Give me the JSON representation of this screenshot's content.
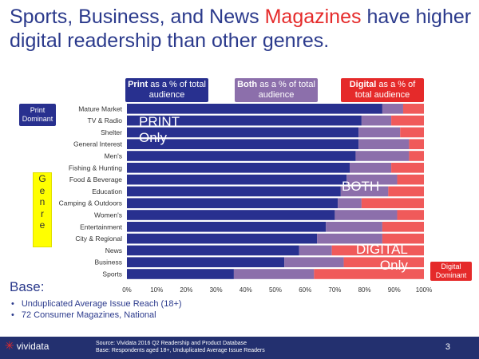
{
  "title": {
    "part1": "Sports, Business, and News ",
    "highlight": "Magazines",
    "part2": " have higher digital readership than other genres."
  },
  "legend": {
    "print": {
      "bold": "Print",
      "rest": " as a % of total audience"
    },
    "both": {
      "bold": "Both",
      "rest": " as a % of total audience"
    },
    "digital": {
      "bold": "Digital",
      "rest": " as a % of total audience"
    }
  },
  "badges": {
    "print_dominant": "Print Dominant",
    "digital_dominant": "Digital Dominant"
  },
  "genre_label": [
    "G",
    "e",
    "n",
    "r",
    "e"
  ],
  "overlays": {
    "print_only": [
      "PRINT",
      "Only"
    ],
    "both": "BOTH",
    "digital_only": [
      "DIGITAL",
      "Only"
    ]
  },
  "colors": {
    "title": "#2b3a8c",
    "highlight": "#e52a2a",
    "print": "#28308f",
    "both": "#8c6fab",
    "digital": "#f05a5a",
    "legend_print": "#28308f",
    "legend_both": "#8c6fab",
    "legend_digital": "#e52a2a",
    "footer": "#23306f"
  },
  "chart_data": {
    "type": "bar",
    "orientation": "horizontal",
    "stacked": true,
    "categories": [
      "Mature Market",
      "TV & Radio",
      "Shelter",
      "General Interest",
      "Men's",
      "Fishing & Hunting",
      "Food & Beverage",
      "Education",
      "Camping & Outdoors",
      "Women's",
      "Entertainment",
      "City & Regional",
      "News",
      "Business",
      "Sports"
    ],
    "series": [
      {
        "name": "Print",
        "values": [
          86,
          79,
          78,
          78,
          77,
          75,
          74,
          72,
          71,
          70,
          67,
          64,
          58,
          53,
          36
        ]
      },
      {
        "name": "Both",
        "values": [
          7,
          10,
          14,
          17,
          18,
          14,
          17,
          16,
          8,
          21,
          19,
          22,
          11,
          20,
          27
        ]
      },
      {
        "name": "Digital",
        "values": [
          7,
          11,
          8,
          5,
          5,
          11,
          9,
          12,
          21,
          9,
          14,
          14,
          31,
          27,
          37
        ]
      }
    ],
    "xlim": [
      0,
      100
    ],
    "xticks": [
      "0%",
      "10%",
      "20%",
      "30%",
      "40%",
      "50%",
      "60%",
      "70%",
      "80%",
      "90%",
      "100%"
    ],
    "xlabel": "",
    "ylabel": ""
  },
  "base": {
    "title": "Base:",
    "items": [
      "Unduplicated Average Issue Reach (18+)",
      "72 Consumer Magazines, National"
    ]
  },
  "footer": {
    "logo": "vividata",
    "source_line1": "Source: Vividata 2016 Q2 Readership and Product Database",
    "source_line2": "Base: Respondents aged 18+, Unduplicated Average Issue Readers",
    "page_number": "3"
  }
}
